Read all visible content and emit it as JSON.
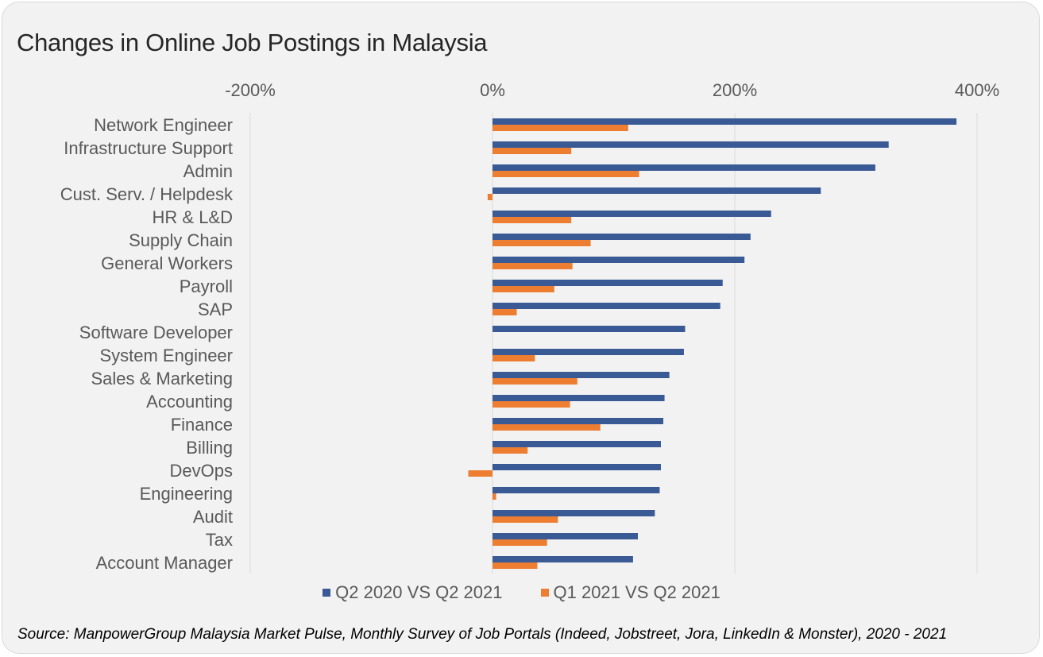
{
  "title": "Changes in Online Job Postings in Malaysia",
  "source": "Source: ManpowerGroup Malaysia Market Pulse, Monthly Survey of Job Portals (Indeed, Jobstreet, Jora, LinkedIn & Monster), 2020 - 2021",
  "colors": {
    "series1": "#3a5a95",
    "series2": "#ed7d31",
    "gridline": "#d9d9d9",
    "axis_text": "#595959",
    "background": "#f2f2f2"
  },
  "chart_data": {
    "type": "bar",
    "orientation": "horizontal",
    "title": "Changes in Online Job Postings in Malaysia",
    "xlim": [
      -200,
      400
    ],
    "x_ticks": [
      -200,
      0,
      200,
      400
    ],
    "x_tick_labels": [
      "-200%",
      "0%",
      "200%",
      "400%"
    ],
    "x_axis_position": "top",
    "grid": true,
    "legend_position": "bottom",
    "categories": [
      "Network Engineer",
      "Infrastructure Support",
      "Admin",
      "Cust. Serv. / Helpdesk",
      "HR & L&D",
      "Supply Chain",
      "General Workers",
      "Payroll",
      "SAP",
      "Software Developer",
      "System Engineer",
      "Sales & Marketing",
      "Accounting",
      "Finance",
      "Billing",
      "DevOps",
      "Engineering",
      "Audit",
      "Tax",
      "Account Manager"
    ],
    "series": [
      {
        "name": "Q2 2020 VS Q2 2021",
        "values": [
          383,
          327,
          316,
          271,
          230,
          213,
          208,
          190,
          188,
          159,
          158,
          146,
          142,
          141,
          139,
          139,
          138,
          134,
          120,
          116
        ]
      },
      {
        "name": "Q1 2021 VS Q2 2021",
        "values": [
          112,
          65,
          121,
          -4,
          65,
          81,
          66,
          51,
          20,
          0,
          35,
          70,
          64,
          89,
          29,
          -20,
          3,
          54,
          45,
          37
        ]
      }
    ]
  }
}
